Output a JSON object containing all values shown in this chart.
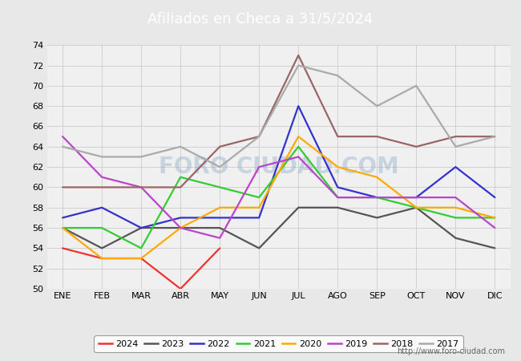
{
  "title": "Afiliados en Checa a 31/5/2024",
  "title_bg_color": "#5b8fc9",
  "months": [
    "ENE",
    "FEB",
    "MAR",
    "ABR",
    "MAY",
    "JUN",
    "JUL",
    "AGO",
    "SEP",
    "OCT",
    "NOV",
    "DIC"
  ],
  "ylim": [
    50,
    74
  ],
  "yticks": [
    50,
    52,
    54,
    56,
    58,
    60,
    62,
    64,
    66,
    68,
    70,
    72,
    74
  ],
  "series": {
    "2024": {
      "color": "#ee3333",
      "data": [
        54,
        53,
        53,
        50,
        54,
        null,
        null,
        null,
        null,
        null,
        null,
        null
      ]
    },
    "2023": {
      "color": "#555555",
      "data": [
        56,
        54,
        56,
        56,
        56,
        54,
        58,
        58,
        57,
        58,
        55,
        54
      ]
    },
    "2022": {
      "color": "#3333cc",
      "data": [
        57,
        58,
        56,
        57,
        57,
        57,
        68,
        60,
        59,
        59,
        62,
        59
      ]
    },
    "2021": {
      "color": "#33cc33",
      "data": [
        56,
        56,
        54,
        61,
        60,
        59,
        64,
        59,
        59,
        58,
        57,
        57
      ]
    },
    "2020": {
      "color": "#ffaa00",
      "data": [
        56,
        53,
        53,
        56,
        58,
        58,
        65,
        62,
        61,
        58,
        58,
        57
      ]
    },
    "2019": {
      "color": "#bb44cc",
      "data": [
        65,
        61,
        60,
        56,
        55,
        62,
        63,
        59,
        59,
        59,
        59,
        56
      ]
    },
    "2018": {
      "color": "#996666",
      "data": [
        60,
        60,
        60,
        60,
        64,
        65,
        73,
        65,
        65,
        64,
        65,
        65
      ]
    },
    "2017": {
      "color": "#aaaaaa",
      "data": [
        64,
        63,
        63,
        64,
        62,
        65,
        72,
        71,
        68,
        70,
        64,
        65
      ]
    }
  },
  "legend_order": [
    "2024",
    "2023",
    "2022",
    "2021",
    "2020",
    "2019",
    "2018",
    "2017"
  ],
  "bg_color": "#e8e8e8",
  "plot_bg_color": "#f0f0f0",
  "grid_color": "#cccccc",
  "watermark": "FORO CIUDAD.COM",
  "url": "http://www.foro-ciudad.com",
  "font_size_title": 13,
  "font_size_ticks": 8,
  "font_size_legend": 8
}
